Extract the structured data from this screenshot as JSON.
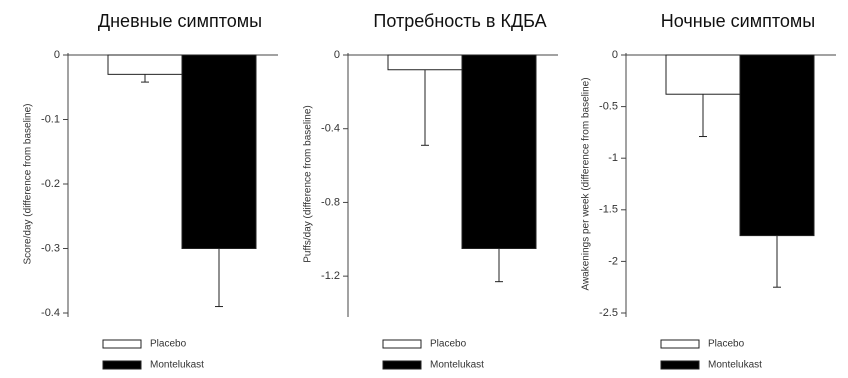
{
  "chart_data": [
    {
      "type": "bar",
      "title": "Дневные симптомы",
      "y_label": "Score/day (difference from baseline)",
      "ylim": [
        -0.4,
        0
      ],
      "yticks": [
        0,
        -0.1,
        -0.2,
        -0.3,
        -0.4
      ],
      "series": [
        {
          "name": "Placebo",
          "color": "#ffffff",
          "values": [
            -0.03
          ],
          "errors": [
            0.012
          ]
        },
        {
          "name": "Montelukast",
          "color": "#000000",
          "values": [
            -0.3
          ],
          "errors": [
            0.09
          ]
        }
      ]
    },
    {
      "type": "bar",
      "title": "Потребность в КДБА",
      "y_label": "Puffs/day (difference from baseline)",
      "ylim": [
        -1.4,
        0
      ],
      "yticks": [
        0,
        -0.4,
        -0.8,
        -1.2
      ],
      "series": [
        {
          "name": "Placebo",
          "color": "#ffffff",
          "values": [
            -0.08
          ],
          "errors": [
            0.41
          ]
        },
        {
          "name": "Montelukast",
          "color": "#000000",
          "values": [
            -1.05
          ],
          "errors": [
            0.18
          ]
        }
      ]
    },
    {
      "type": "bar",
      "title": "Ночные симптомы",
      "y_label": "Awakenings per week (difference from baseline)",
      "ylim": [
        -2.5,
        0
      ],
      "yticks": [
        0,
        -0.5,
        -1,
        -1.5,
        -2,
        -2.5
      ],
      "series": [
        {
          "name": "Placebo",
          "color": "#ffffff",
          "values": [
            -0.38
          ],
          "errors": [
            0.41
          ]
        },
        {
          "name": "Montelukast",
          "color": "#000000",
          "values": [
            -1.75
          ],
          "errors": [
            0.5
          ]
        }
      ]
    }
  ]
}
